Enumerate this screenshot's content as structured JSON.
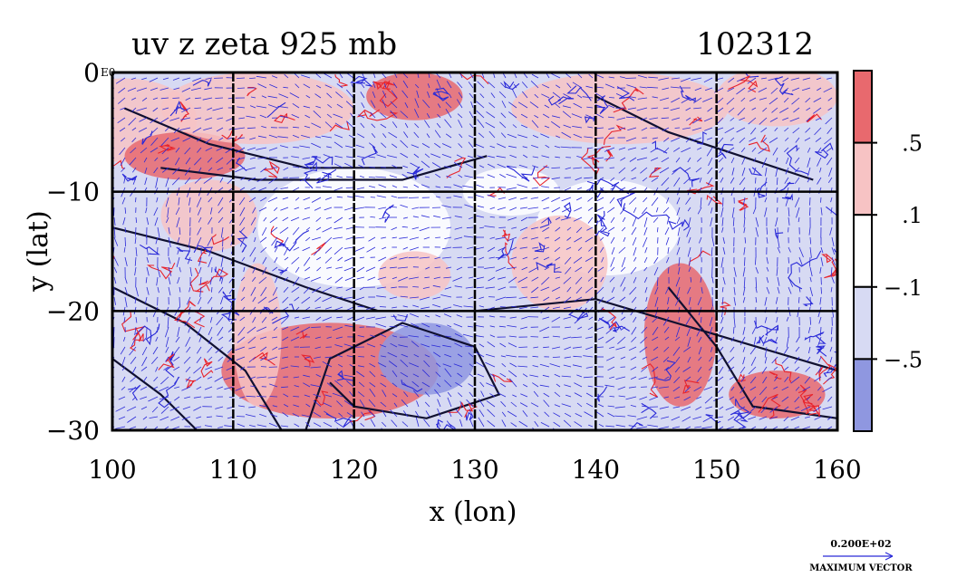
{
  "chart_data": {
    "type": "heatmap",
    "title": "uv z zeta 925 mb",
    "title_right": "102312",
    "xlabel": "x (lon)",
    "ylabel": "y (lat)",
    "xlim": [
      100,
      160
    ],
    "ylim": [
      -30,
      0
    ],
    "x_ticks": [
      100,
      110,
      120,
      130,
      140,
      150,
      160
    ],
    "y_ticks": [
      -30,
      -20,
      -10,
      0
    ],
    "y_tick_labels": [
      "−30",
      "−20",
      "−10",
      "0"
    ],
    "y_top_suffix": "E0",
    "grid": true,
    "grid_lines_x": [
      110,
      120,
      130,
      140,
      150
    ],
    "grid_lines_y": [
      -10,
      -20
    ],
    "colorbar": {
      "levels": [
        {
          "range": "above 0.5",
          "color": "#e8696e"
        },
        {
          "range": "0.1 to 0.5",
          "color": "#f7c3c4"
        },
        {
          "range": "-0.1 to 0.1",
          "color": "#ffffff"
        },
        {
          "range": "-0.5 to -0.1",
          "color": "#d7daf3"
        },
        {
          "range": "below -0.5",
          "color": "#8f97e0"
        }
      ],
      "boundary_labels": [
        ".5",
        ".1",
        "−.1",
        "−.5"
      ]
    },
    "vector_legend": {
      "value": "0.200E+02",
      "label": "MAXIMUM VECTOR"
    },
    "colors": {
      "positive_contour": "#e8242c",
      "negative_contour": "#2a2ad8",
      "height_contour": "#101030",
      "vector": "#2a2ad8",
      "background_field": "#d7daf3"
    }
  }
}
